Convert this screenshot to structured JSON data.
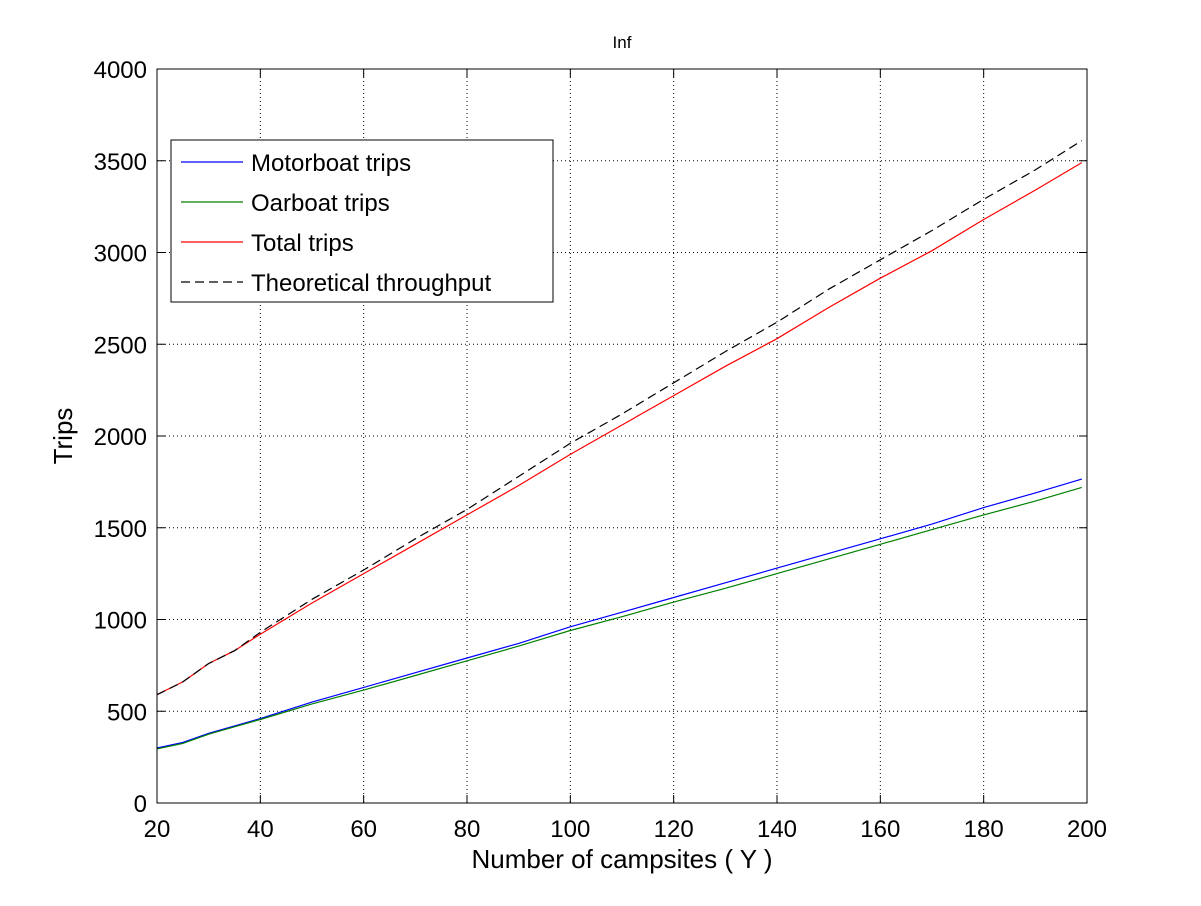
{
  "chart_data": {
    "type": "line",
    "title": "Inf",
    "xlabel": "Number of campsites ( Y )",
    "ylabel": "Trips",
    "xlim": [
      20,
      200
    ],
    "ylim": [
      0,
      4000
    ],
    "x_ticks": [
      20,
      40,
      60,
      80,
      100,
      120,
      140,
      160,
      180,
      200
    ],
    "y_ticks": [
      0,
      500,
      1000,
      1500,
      2000,
      2500,
      3000,
      3500,
      4000
    ],
    "grid": true,
    "legend_position": "upper-left",
    "series": [
      {
        "name": "Motorboat trips",
        "color": "#0000ff",
        "dash": "solid",
        "x": [
          20,
          25,
          30,
          35,
          40,
          50,
          60,
          70,
          80,
          90,
          100,
          110,
          120,
          130,
          140,
          150,
          160,
          170,
          180,
          190,
          199
        ],
        "values": [
          300,
          330,
          380,
          420,
          460,
          550,
          630,
          710,
          790,
          870,
          960,
          1040,
          1120,
          1200,
          1280,
          1360,
          1440,
          1520,
          1610,
          1690,
          1765
        ]
      },
      {
        "name": "Oarboat trips",
        "color": "#008000",
        "dash": "solid",
        "x": [
          20,
          25,
          30,
          35,
          40,
          50,
          60,
          70,
          80,
          90,
          100,
          110,
          120,
          130,
          140,
          150,
          160,
          170,
          180,
          190,
          199
        ],
        "values": [
          295,
          325,
          375,
          415,
          455,
          540,
          615,
          695,
          775,
          855,
          940,
          1015,
          1095,
          1170,
          1250,
          1330,
          1410,
          1490,
          1570,
          1645,
          1720
        ]
      },
      {
        "name": "Total trips",
        "color": "#ff0000",
        "dash": "solid",
        "x": [
          20,
          25,
          30,
          35,
          40,
          50,
          60,
          70,
          80,
          90,
          100,
          110,
          120,
          130,
          140,
          150,
          160,
          170,
          180,
          190,
          199
        ],
        "values": [
          590,
          660,
          760,
          830,
          920,
          1090,
          1250,
          1410,
          1570,
          1730,
          1900,
          2060,
          2220,
          2380,
          2530,
          2700,
          2860,
          3010,
          3180,
          3340,
          3490
        ]
      },
      {
        "name": "Theoretical throughput",
        "color": "#000000",
        "dash": "dashed",
        "x": [
          20,
          25,
          30,
          35,
          40,
          50,
          60,
          70,
          80,
          90,
          100,
          110,
          120,
          130,
          140,
          150,
          160,
          170,
          180,
          190,
          199
        ],
        "values": [
          590,
          660,
          760,
          830,
          930,
          1110,
          1270,
          1440,
          1600,
          1780,
          1960,
          2120,
          2290,
          2460,
          2620,
          2800,
          2960,
          3120,
          3290,
          3450,
          3610
        ]
      }
    ]
  }
}
